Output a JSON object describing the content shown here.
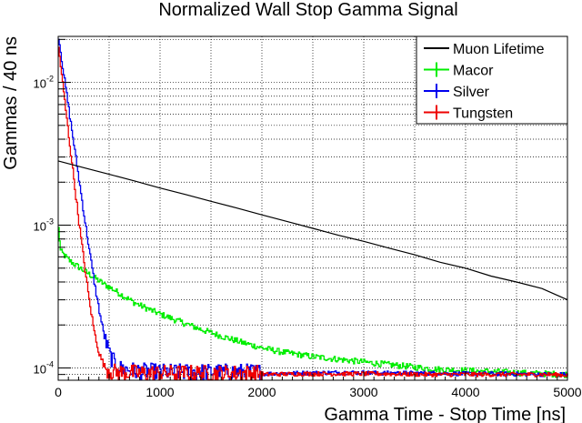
{
  "chart_data": {
    "type": "line",
    "title": "Normalized Wall Stop Gamma Signal",
    "xlabel": "Gamma Time - Stop Time [ns]",
    "ylabel": "Gammas / 40 ns",
    "xlim": [
      0,
      5000
    ],
    "ylim": [
      8.2e-05,
      0.021
    ],
    "yscale": "log",
    "grid": true,
    "legend_position": "top-right",
    "x_ticks": [
      {
        "value": 0,
        "label": "0"
      },
      {
        "value": 1000,
        "label": "1000"
      },
      {
        "value": 2000,
        "label": "2000"
      },
      {
        "value": 3000,
        "label": "3000"
      },
      {
        "value": 4000,
        "label": "4000"
      },
      {
        "value": 5000,
        "label": "5000"
      }
    ],
    "y_ticks": [
      {
        "value": 0.0001,
        "base": "10",
        "exp": "-4"
      },
      {
        "value": 0.001,
        "base": "10",
        "exp": "-3"
      },
      {
        "value": 0.01,
        "base": "10",
        "exp": "-2"
      }
    ],
    "series": [
      {
        "name": "Muon Lifetime",
        "color": "#000000",
        "style": "line",
        "x": [
          0,
          250,
          500,
          750,
          1000,
          1250,
          1500,
          1750,
          2000,
          2250,
          2500,
          2750,
          3000,
          3250,
          3500,
          3750,
          4000,
          4250,
          4500,
          4750,
          5000
        ],
        "y": [
          0.00282,
          0.00253,
          0.00227,
          0.00204,
          0.00182,
          0.00164,
          0.00147,
          0.00132,
          0.00118,
          0.00106,
          0.00095,
          0.00085,
          0.00077,
          0.00069,
          0.00062,
          0.00055,
          0.0005,
          0.00044,
          0.0004,
          0.00036,
          0.0003
        ]
      },
      {
        "name": "Macor",
        "color": "#00ee00",
        "style": "hist",
        "x": [
          0,
          20,
          60,
          100,
          160,
          250,
          350,
          450,
          550,
          650,
          750,
          900,
          1000,
          1200,
          1400,
          1600,
          1800,
          2000,
          2200,
          2500,
          2800,
          3100,
          3400,
          3700,
          4000,
          4300,
          4600,
          5000
        ],
        "y": [
          0.00095,
          0.00066,
          0.00061,
          0.00057,
          0.00053,
          0.00048,
          0.00043,
          0.000385,
          0.00035,
          0.000315,
          0.000285,
          0.000255,
          0.000238,
          0.00021,
          0.000186,
          0.000167,
          0.000151,
          0.000138,
          0.000129,
          0.00012,
          0.000114,
          0.000108,
          0.000103,
          9.8e-05,
          9.6e-05,
          9.4e-05,
          9.2e-05,
          9e-05
        ]
      },
      {
        "name": "Silver",
        "color": "#0000ee",
        "style": "hist",
        "x": [
          0,
          50,
          100,
          150,
          200,
          250,
          300,
          350,
          400,
          450,
          500,
          550,
          600,
          700,
          800,
          900,
          1000,
          1200,
          1400,
          1600,
          1800,
          1990,
          2010,
          2400,
          2800,
          3200,
          3600,
          4000,
          4400,
          4800,
          5000
        ],
        "y": [
          0.021,
          0.0115,
          0.0065,
          0.0037,
          0.0021,
          0.00118,
          0.00068,
          0.0004,
          0.00025,
          0.000165,
          0.000125,
          0.000108,
          0.0001,
          9.7e-05,
          9.5e-05,
          9.5e-05,
          9.4e-05,
          9.4e-05,
          9.4e-05,
          9.4e-05,
          9.4e-05,
          9.4e-05,
          9.1e-05,
          9.2e-05,
          9.3e-05,
          9.2e-05,
          9.2e-05,
          9.1e-05,
          9.1e-05,
          9e-05,
          9e-05
        ]
      },
      {
        "name": "Tungsten",
        "color": "#ee0000",
        "style": "hist",
        "x": [
          0,
          50,
          100,
          150,
          200,
          250,
          300,
          350,
          400,
          450,
          500,
          550,
          600,
          700,
          800,
          1000,
          1200,
          1400,
          1600,
          1800,
          1990,
          2010,
          2400,
          2800,
          3200,
          3600,
          4000,
          4400,
          4800,
          5000
        ],
        "y": [
          0.0175,
          0.0085,
          0.0042,
          0.0021,
          0.00105,
          0.00055,
          0.0003,
          0.00018,
          0.000125,
          0.000103,
          9.6e-05,
          9.4e-05,
          9.3e-05,
          9.3e-05,
          9.2e-05,
          9.2e-05,
          9.2e-05,
          9.2e-05,
          9.2e-05,
          9.2e-05,
          9.2e-05,
          9e-05,
          9.1e-05,
          9.1e-05,
          9.1e-05,
          9e-05,
          9e-05,
          9e-05,
          9e-05,
          8.9e-05
        ]
      }
    ]
  }
}
